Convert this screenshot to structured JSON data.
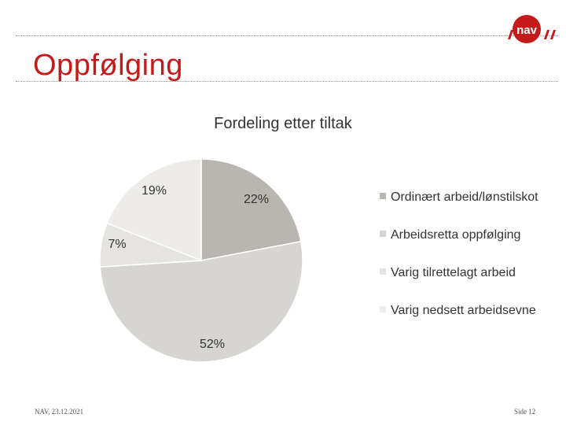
{
  "slide": {
    "title": "Oppfølging",
    "logo_text": "nav",
    "footer_date": "NAV, 23.12.2021",
    "footer_page": "Side 12"
  },
  "colors": {
    "brand_red": "#c41a1a",
    "title_red": "#c41a1a"
  },
  "chart_data": {
    "type": "pie",
    "title": "Fordeling etter tiltak",
    "slices": [
      {
        "label": "Ordinært arbeid/lønstilskot",
        "value": 22,
        "display": "22%",
        "color": "#b9b6b1"
      },
      {
        "label": "Arbeidsretta oppfølging",
        "value": 52,
        "display": "52%",
        "color": "#d6d5d2"
      },
      {
        "label": "Varig tilrettelagt arbeid",
        "value": 7,
        "display": "7%",
        "color": "#e5e4e0"
      },
      {
        "label": "Varig nedsett arbeidsevne",
        "value": 19,
        "display": "19%",
        "color": "#edece8"
      }
    ],
    "legend_position": "right"
  }
}
